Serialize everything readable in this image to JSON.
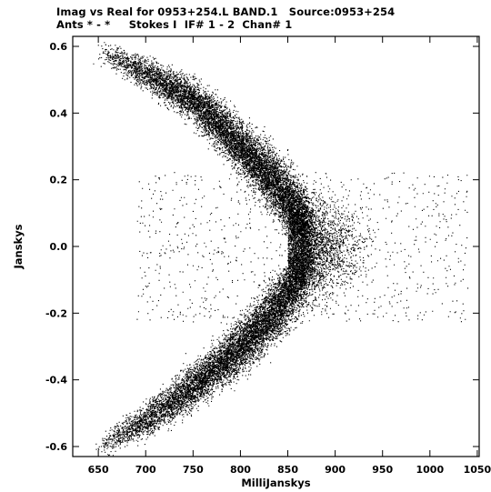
{
  "header": {
    "title_line1": "Imag vs Real for 0953+254.L BAND.1   Source:0953+254",
    "title_line2": "Ants * - *     Stokes I  IF# 1 - 2  Chan# 1"
  },
  "chart_data": {
    "type": "scatter",
    "xlabel": "MilliJanskys",
    "ylabel": "Janskys",
    "xlim": [
      623,
      1052
    ],
    "ylim": [
      -0.63,
      0.63
    ],
    "xticks": [
      650,
      700,
      750,
      800,
      850,
      900,
      950,
      1000,
      1050
    ],
    "yticks": [
      0.6,
      0.4,
      0.2,
      0.0,
      -0.2,
      -0.4,
      -0.6
    ],
    "ytick_labels": [
      "0.6",
      "0.4",
      "0.2",
      "0.0",
      "-0.2",
      "-0.4",
      "-0.6"
    ],
    "point_color": "#000000",
    "grid": false,
    "structure": {
      "upper_arm": [
        [
          655,
          0.58
        ],
        [
          700,
          0.52
        ],
        [
          750,
          0.44
        ],
        [
          800,
          0.3
        ],
        [
          840,
          0.18
        ],
        [
          870,
          0.05
        ]
      ],
      "lower_arm": [
        [
          650,
          -0.6
        ],
        [
          700,
          -0.52
        ],
        [
          750,
          -0.42
        ],
        [
          800,
          -0.3
        ],
        [
          840,
          -0.18
        ],
        [
          870,
          -0.05
        ]
      ],
      "vertex": [
        875,
        0.0
      ],
      "tail_x_range": [
        880,
        1040
      ],
      "spread": 0.035,
      "point_count": 22000
    }
  }
}
